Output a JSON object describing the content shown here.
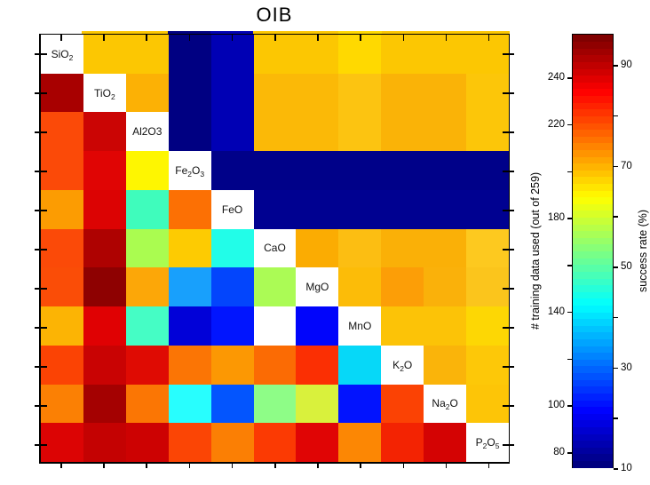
{
  "title": "OIB",
  "chart_data": {
    "type": "heatmap",
    "title": "OIB",
    "variables": [
      "SiO2",
      "TiO2",
      "Al2O3",
      "Fe2O3",
      "FeO",
      "CaO",
      "MgO",
      "MnO",
      "K2O",
      "Na2O",
      "P2O5"
    ],
    "diagonal_label_segments": [
      [
        "SiO",
        "_2"
      ],
      [
        "TiO",
        "_2"
      ],
      [
        "Al2O3"
      ],
      [
        "Fe",
        "_2",
        "O",
        "_3"
      ],
      [
        "FeO"
      ],
      [
        "CaO"
      ],
      [
        "MgO"
      ],
      [
        "MnO"
      ],
      [
        "K",
        "_2",
        "O"
      ],
      [
        "Na",
        "_2",
        "O"
      ],
      [
        "P",
        "_2",
        "O",
        "_5"
      ]
    ],
    "grid": "off",
    "colormap": "jet",
    "legend_position": "right",
    "missing_cells": [
      [
        7,
        5
      ]
    ],
    "cell_colors": [
      [
        "#FFFFFF",
        "#FCC702",
        "#FCC702",
        "#000082",
        "#0000B4",
        "#FCC702",
        "#FCC702",
        "#FFD900",
        "#FCC702",
        "#FCC702",
        "#FCC702"
      ],
      [
        "#A80000",
        "#FFFFFF",
        "#FCB105",
        "#000082",
        "#0000B4",
        "#FBB907",
        "#FBB907",
        "#FCC411",
        "#FAB307",
        "#FAB307",
        "#FCC609"
      ],
      [
        "#FB4A08",
        "#CB0504",
        "#FFFFFF",
        "#000082",
        "#0000B4",
        "#FBB907",
        "#FBB907",
        "#FCC411",
        "#FAB307",
        "#FAB307",
        "#FCC609"
      ],
      [
        "#FB4A08",
        "#E00504",
        "#FEF601",
        "#FFFFFF",
        "#000189",
        "#000189",
        "#000189",
        "#000189",
        "#000189",
        "#000189",
        "#000189"
      ],
      [
        "#FC9C02",
        "#DC0303",
        "#3FFCBC",
        "#FC7004",
        "#FFFFFF",
        "#000191",
        "#000191",
        "#000191",
        "#000191",
        "#000191",
        "#000191"
      ],
      [
        "#FB4A08",
        "#AE0201",
        "#AAFC50",
        "#FDCB02",
        "#22FDE8",
        "#FFFFFF",
        "#FBAC02",
        "#FCBE12",
        "#FAB007",
        "#FAB007",
        "#FDC91F"
      ],
      [
        "#FA4D07",
        "#8E0101",
        "#FCA708",
        "#18A0FC",
        "#0345FC",
        "#ABFB55",
        "#FFFFFF",
        "#FCBC08",
        "#FC9E07",
        "#FAB10A",
        "#FBC51C"
      ],
      [
        "#FCB404",
        "#E00103",
        "#45FDC5",
        "#0101D8",
        "#0115FE",
        "#FFFFFF",
        "#0105FB",
        "#FFFFFF",
        "#FCC307",
        "#FCC307",
        "#FDD704"
      ],
      [
        "#FB4304",
        "#C90303",
        "#DF0B03",
        "#FB7505",
        "#FC9803",
        "#FB6B04",
        "#FB2F03",
        "#06D8F8",
        "#FFFFFF",
        "#FAB40A",
        "#FDC808"
      ],
      [
        "#FB8004",
        "#A40101",
        "#FB7604",
        "#28FEFE",
        "#0355FE",
        "#8EFD87",
        "#D9F13C",
        "#0213FE",
        "#FB4204",
        "#FFFFFF",
        "#FDC507"
      ],
      [
        "#DC0404",
        "#C40202",
        "#CD0202",
        "#FB4505",
        "#FB7F04",
        "#FB3A03",
        "#E00505",
        "#FC8704",
        "#F32302",
        "#D40303",
        "#FFFFFF"
      ]
    ],
    "approx_success_rate_percent": [
      [
        null,
        68,
        68,
        12,
        15,
        68,
        68,
        66,
        68,
        68,
        68
      ],
      [
        92,
        null,
        71,
        12,
        15,
        70,
        70,
        68,
        70,
        70,
        68
      ],
      [
        79,
        88,
        null,
        12,
        15,
        70,
        70,
        68,
        70,
        70,
        68
      ],
      [
        79,
        86,
        63,
        null,
        12,
        12,
        12,
        12,
        12,
        12,
        12
      ],
      [
        72,
        86,
        46,
        76,
        null,
        12,
        12,
        12,
        12,
        12,
        12
      ],
      [
        79,
        91,
        54,
        67,
        43,
        null,
        71,
        68,
        70,
        70,
        68
      ],
      [
        79,
        95,
        72,
        31,
        21,
        54,
        null,
        68,
        72,
        70,
        68
      ],
      [
        70,
        86,
        46,
        18,
        20,
        null,
        20,
        null,
        68,
        68,
        66
      ],
      [
        80,
        88,
        86,
        75,
        73,
        76,
        82,
        37,
        null,
        70,
        68
      ],
      [
        75,
        92,
        75,
        41,
        22,
        51,
        58,
        20,
        80,
        null,
        68
      ],
      [
        86,
        88,
        87,
        79,
        75,
        81,
        86,
        74,
        82,
        87,
        null
      ]
    ],
    "colorbar": {
      "left_axis": {
        "label": "# training data used (out of 259)",
        "tick_values": [
          240,
          220,
          200,
          180,
          160,
          140,
          120,
          100,
          80
        ],
        "labeled_ticks": [
          240,
          220,
          180,
          140,
          100,
          80
        ],
        "value_range": [
          73,
          259
        ]
      },
      "right_axis": {
        "label": "success rate (%)",
        "tick_values": [
          90,
          80,
          70,
          60,
          50,
          40,
          30,
          20,
          10
        ],
        "labeled_ticks": [
          90,
          70,
          50,
          30,
          10
        ],
        "value_range": [
          10,
          96
        ]
      }
    }
  }
}
